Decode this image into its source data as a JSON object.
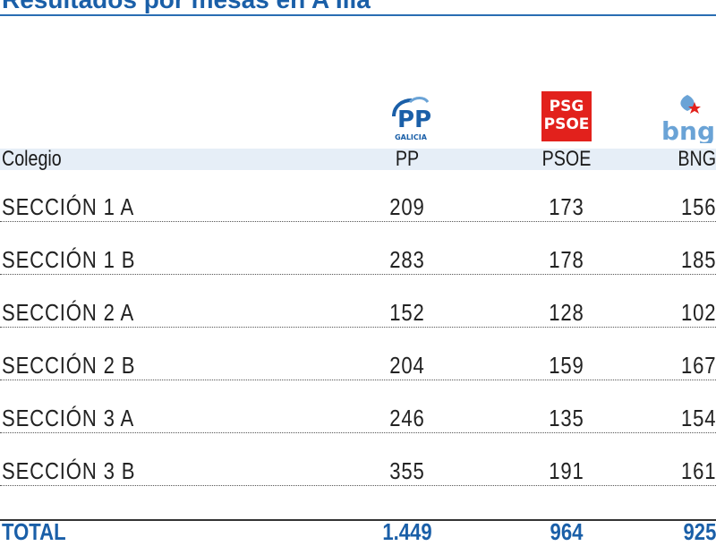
{
  "title": "Resultados por mesas en A Illa",
  "logos": {
    "pp": {
      "mark": "PP",
      "caption": "GALICIA",
      "color": "#1a5fa8"
    },
    "psoe": {
      "line1": "PSG",
      "line2": "PSOE",
      "color": "#e2211c"
    },
    "bng": {
      "text": "bng",
      "color": "#6aa3d6",
      "star_color": "#e2211c"
    }
  },
  "header": {
    "colegio": "Colegio",
    "pp": "PP",
    "psoe": "PSOE",
    "bng": "BNG"
  },
  "rows": [
    {
      "name": "SECCIÓN 1 A",
      "pp": "209",
      "psoe": "173",
      "bng": "156"
    },
    {
      "name": "SECCIÓN 1 B",
      "pp": "283",
      "psoe": "178",
      "bng": "185"
    },
    {
      "name": "SECCIÓN 2 A",
      "pp": "152",
      "psoe": "128",
      "bng": "102"
    },
    {
      "name": "SECCIÓN 2 B",
      "pp": "204",
      "psoe": "159",
      "bng": "167"
    },
    {
      "name": "SECCIÓN 3 A",
      "pp": "246",
      "psoe": "135",
      "bng": "154"
    },
    {
      "name": "SECCIÓN 3 B",
      "pp": "355",
      "psoe": "191",
      "bng": "161"
    }
  ],
  "total": {
    "label": "TOTAL",
    "pp": "1.449",
    "psoe": "964",
    "bng": "925"
  },
  "colors": {
    "accent": "#1a5fa8",
    "header_band": "#e6eef7"
  }
}
